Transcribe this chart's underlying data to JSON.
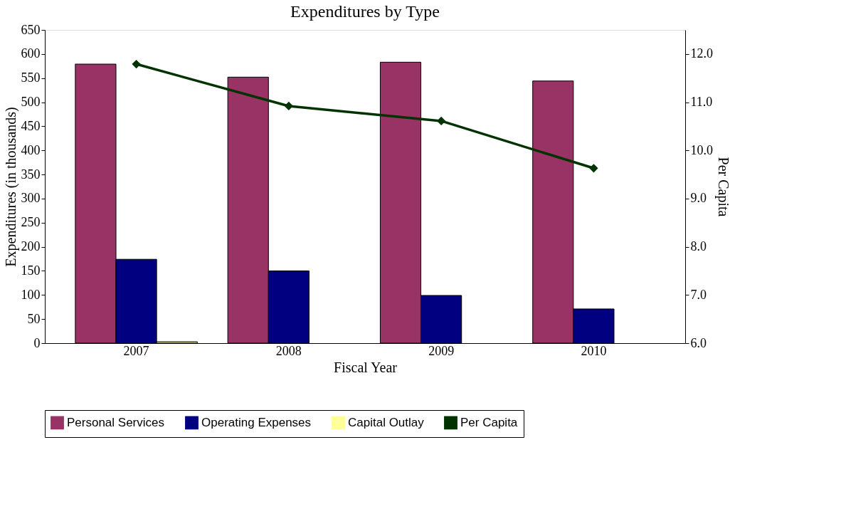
{
  "chart_data": {
    "type": "bar",
    "title": "Expenditures by Type",
    "xlabel": "Fiscal Year",
    "ylabel": "Expenditures (in thousands)",
    "y2label": "Per Capita",
    "categories": [
      "2007",
      "2008",
      "2009",
      "2010"
    ],
    "series": [
      {
        "name": "Personal Services",
        "color": "#993366",
        "values": [
          579,
          552,
          583,
          544
        ]
      },
      {
        "name": "Operating Expenses",
        "color": "#000080",
        "values": [
          174,
          150,
          99,
          71
        ]
      },
      {
        "name": "Capital Outlay",
        "color": "#ffff99",
        "values": [
          3,
          0,
          0,
          0
        ]
      },
      {
        "name": "Per Capita",
        "type": "line",
        "axis": "y2",
        "color": "#003300",
        "marker": "diamond",
        "values": [
          11.79,
          10.92,
          10.61,
          9.63
        ]
      }
    ],
    "ylim": [
      0,
      650
    ],
    "yticks": [
      0,
      50,
      100,
      150,
      200,
      250,
      300,
      350,
      400,
      450,
      500,
      550,
      600,
      650
    ],
    "y2lim": [
      6,
      12.5
    ],
    "y2ticks": [
      {
        "value": 6,
        "label": "6.0"
      },
      {
        "value": 7,
        "label": "7.0"
      },
      {
        "value": 8,
        "label": "8.0"
      },
      {
        "value": 9,
        "label": "9.0"
      },
      {
        "value": 10,
        "label": "10.0"
      },
      {
        "value": 11,
        "label": "11.0"
      },
      {
        "value": 12,
        "label": "12.0"
      }
    ],
    "grid": false,
    "legend": "bottom"
  }
}
